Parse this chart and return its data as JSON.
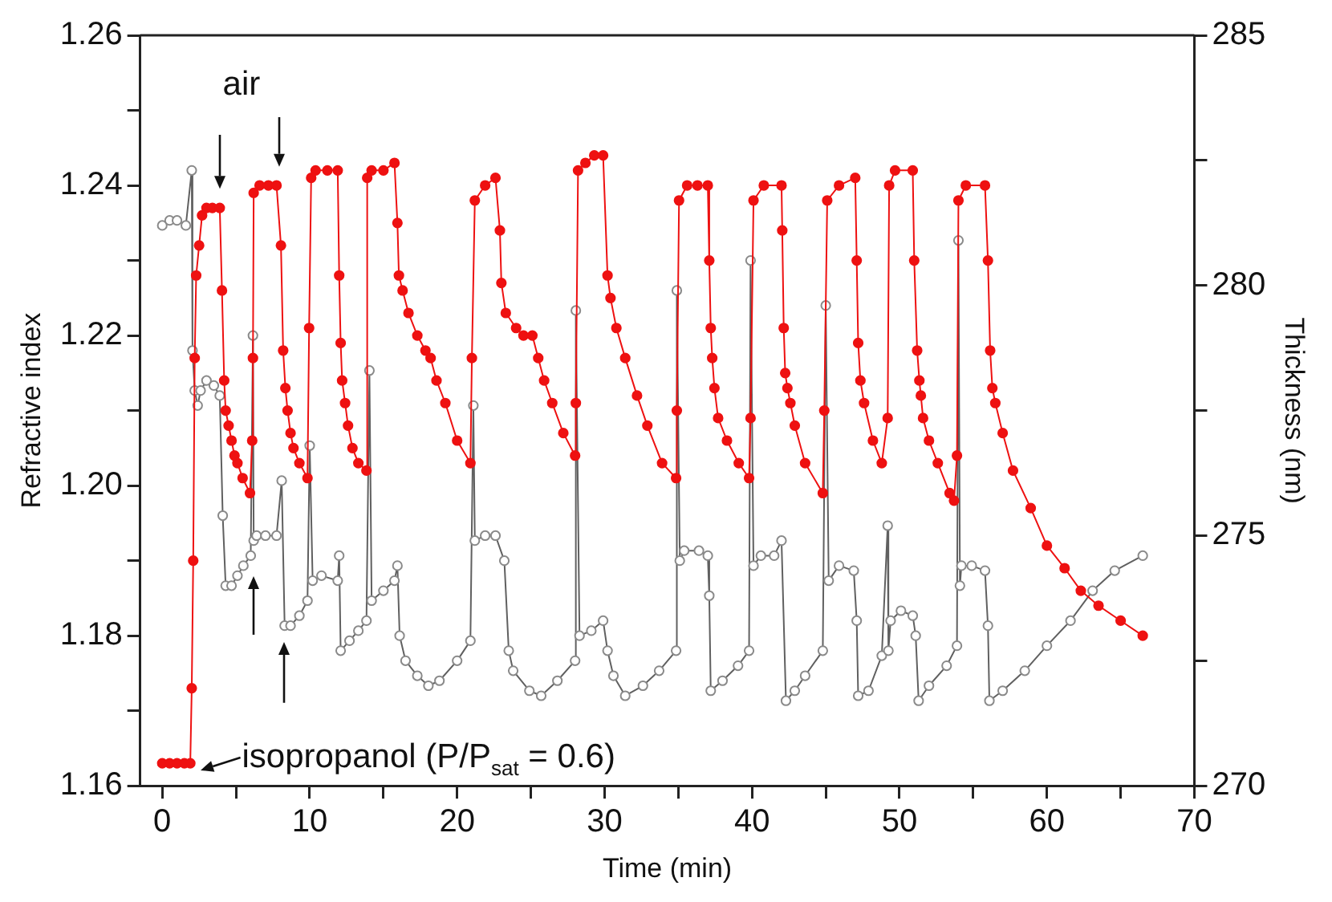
{
  "chart_data": {
    "type": "line",
    "xlabel": "Time (min)",
    "ylabel": "Refractive index",
    "y2label": "Thickness (nm)",
    "xlim": [
      -1.5,
      70
    ],
    "xticks": [
      0,
      {
        "value": 5,
        "label": null
      },
      10,
      {
        "value": 15,
        "label": null
      },
      20,
      {
        "value": 25,
        "label": null
      },
      30,
      {
        "value": 35,
        "label": null
      },
      40,
      {
        "value": 45,
        "label": null
      },
      50,
      {
        "value": 55,
        "label": null
      },
      60,
      {
        "value": 65,
        "label": null
      },
      70
    ],
    "ylim": [
      1.16,
      1.26
    ],
    "yticks": [
      1.16,
      {
        "value": 1.17,
        "label": null
      },
      1.18,
      {
        "value": 1.19,
        "label": null
      },
      {
        "value": 1.2,
        "label": "1.20"
      },
      {
        "value": 1.21,
        "label": null
      },
      1.22,
      {
        "value": 1.23,
        "label": null
      },
      1.24,
      {
        "value": 1.25,
        "label": null
      },
      1.26
    ],
    "y2lim": [
      270,
      285
    ],
    "y2ticks": [
      270,
      {
        "value": 272.5,
        "label": null
      },
      275,
      {
        "value": 277.5,
        "label": null
      },
      280,
      {
        "value": 282.5,
        "label": null
      },
      285
    ],
    "marker": "circle",
    "line_style": "solid",
    "annotations": [
      "air",
      "isopropanol (P/P$_{sat}$ = 0.6)"
    ],
    "series": [
      {
        "color": "#ee1111",
        "axis": "y",
        "x": [
          0,
          0.5,
          1,
          1.5,
          1.9,
          2.0,
          2.1,
          2.2,
          2.3,
          2.5,
          2.7,
          3.0,
          3.4,
          3.9,
          4.05,
          4.2,
          4.3,
          4.5,
          4.7,
          4.9,
          5.1,
          5.45,
          5.95,
          6.1,
          6.15,
          6.2,
          6.6,
          7.2,
          7.75,
          8.05,
          8.2,
          8.35,
          8.5,
          8.7,
          8.9,
          9.3,
          9.85,
          9.96,
          10.1,
          10.4,
          11.2,
          11.9,
          12.0,
          12.1,
          12.2,
          12.4,
          12.6,
          12.9,
          13.3,
          13.85,
          13.9,
          14.2,
          15.0,
          15.75,
          15.95,
          16.05,
          16.3,
          16.7,
          17.3,
          17.85,
          18.2,
          18.6,
          19.2,
          20.0,
          20.9,
          21.0,
          21.2,
          21.9,
          22.6,
          22.9,
          23.0,
          23.3,
          24.0,
          24.5,
          25.1,
          25.5,
          25.9,
          26.45,
          27.2,
          28.0,
          28.05,
          28.2,
          28.7,
          29.3,
          29.9,
          30.2,
          30.4,
          30.8,
          31.4,
          32.2,
          32.9,
          33.9,
          34.85,
          34.9,
          35.05,
          35.6,
          36.3,
          37.0,
          37.1,
          37.2,
          37.3,
          37.45,
          37.7,
          38.3,
          39.1,
          39.8,
          39.9,
          40.1,
          40.8,
          42.0,
          42.05,
          42.15,
          42.25,
          42.4,
          42.6,
          42.9,
          43.6,
          44.8,
          44.9,
          45.1,
          45.9,
          47.0,
          47.1,
          47.2,
          47.35,
          47.6,
          48.2,
          48.8,
          49.2,
          49.3,
          49.7,
          50.9,
          51.0,
          51.2,
          51.35,
          51.45,
          51.6,
          52.0,
          52.6,
          53.4,
          53.7,
          53.9,
          54.0,
          54.5,
          55.8,
          56.0,
          56.15,
          56.3,
          56.5,
          57.0,
          57.7,
          58.9,
          60.0,
          61.2,
          62.3,
          63.5,
          65.0,
          66.5
        ],
        "values": [
          1.163,
          1.163,
          1.163,
          1.163,
          1.163,
          1.173,
          1.19,
          1.217,
          1.228,
          1.232,
          1.236,
          1.237,
          1.237,
          1.237,
          1.226,
          1.214,
          1.21,
          1.208,
          1.206,
          1.204,
          1.203,
          1.201,
          1.199,
          1.206,
          1.217,
          1.239,
          1.24,
          1.24,
          1.24,
          1.232,
          1.218,
          1.213,
          1.21,
          1.207,
          1.205,
          1.203,
          1.201,
          1.221,
          1.241,
          1.242,
          1.242,
          1.242,
          1.228,
          1.219,
          1.214,
          1.211,
          1.208,
          1.205,
          1.203,
          1.202,
          1.241,
          1.242,
          1.242,
          1.243,
          1.235,
          1.228,
          1.226,
          1.223,
          1.22,
          1.218,
          1.217,
          1.214,
          1.211,
          1.206,
          1.203,
          1.217,
          1.238,
          1.24,
          1.241,
          1.234,
          1.227,
          1.223,
          1.221,
          1.22,
          1.22,
          1.217,
          1.214,
          1.211,
          1.207,
          1.204,
          1.211,
          1.242,
          1.243,
          1.244,
          1.244,
          1.228,
          1.225,
          1.221,
          1.217,
          1.212,
          1.208,
          1.203,
          1.201,
          1.21,
          1.238,
          1.24,
          1.24,
          1.24,
          1.23,
          1.221,
          1.217,
          1.213,
          1.209,
          1.206,
          1.203,
          1.201,
          1.209,
          1.238,
          1.24,
          1.24,
          1.234,
          1.221,
          1.215,
          1.213,
          1.211,
          1.208,
          1.203,
          1.199,
          1.21,
          1.238,
          1.24,
          1.241,
          1.23,
          1.219,
          1.214,
          1.211,
          1.206,
          1.203,
          1.209,
          1.24,
          1.242,
          1.242,
          1.23,
          1.218,
          1.214,
          1.212,
          1.209,
          1.206,
          1.203,
          1.199,
          1.198,
          1.204,
          1.238,
          1.24,
          1.24,
          1.23,
          1.218,
          1.213,
          1.211,
          1.207,
          1.202,
          1.197,
          1.192,
          1.189,
          1.186,
          1.184,
          1.182,
          1.18
        ]
      },
      {
        "color": "#606060",
        "axis": "y2",
        "x": [
          0,
          0.5,
          1.0,
          1.6,
          2.0,
          2.05,
          2.2,
          2.4,
          2.6,
          3.0,
          3.5,
          3.9,
          4.1,
          4.3,
          4.7,
          5.1,
          5.5,
          6.0,
          6.15,
          6.2,
          6.4,
          7.0,
          7.75,
          8.1,
          8.3,
          8.7,
          9.3,
          9.85,
          10.0,
          10.2,
          10.8,
          11.9,
          12.0,
          12.1,
          12.7,
          13.3,
          13.85,
          14.05,
          14.2,
          15.0,
          15.75,
          15.95,
          16.1,
          16.5,
          17.3,
          18.05,
          18.8,
          20.0,
          20.9,
          21.1,
          21.2,
          21.9,
          22.6,
          23.2,
          23.5,
          23.8,
          24.9,
          25.7,
          26.8,
          28.0,
          28.05,
          28.3,
          29.1,
          29.9,
          30.2,
          30.6,
          31.4,
          32.6,
          33.7,
          34.85,
          34.9,
          35.1,
          35.4,
          36.4,
          37.0,
          37.1,
          37.2,
          38.0,
          39.05,
          39.8,
          39.9,
          40.1,
          40.6,
          41.5,
          42.0,
          42.3,
          42.9,
          43.6,
          44.8,
          45.0,
          45.2,
          45.9,
          46.9,
          47.1,
          47.2,
          47.9,
          48.8,
          49.2,
          49.25,
          49.4,
          50.1,
          50.9,
          51.1,
          51.3,
          52.0,
          53.2,
          53.9,
          54.0,
          54.1,
          54.2,
          54.9,
          55.8,
          56.0,
          56.1,
          57.0,
          58.5,
          60.0,
          61.6,
          63.1,
          64.6,
          66.5
        ],
        "values": [
          281.2,
          281.3,
          281.3,
          281.2,
          282.3,
          278.7,
          277.9,
          277.6,
          277.9,
          278.1,
          278.0,
          277.8,
          275.4,
          274.0,
          274.0,
          274.2,
          274.4,
          274.6,
          279.0,
          274.9,
          275.0,
          275.0,
          275.0,
          276.1,
          273.2,
          273.2,
          273.4,
          273.7,
          276.8,
          274.1,
          274.2,
          274.1,
          274.6,
          272.7,
          272.9,
          273.1,
          273.3,
          278.3,
          273.7,
          273.9,
          274.1,
          274.4,
          273.0,
          272.5,
          272.2,
          272.0,
          272.1,
          272.5,
          272.9,
          277.6,
          274.9,
          275.0,
          275.0,
          274.5,
          272.7,
          272.3,
          271.9,
          271.8,
          272.1,
          272.5,
          279.5,
          273.0,
          273.1,
          273.3,
          272.7,
          272.2,
          271.8,
          272.0,
          272.3,
          272.7,
          279.9,
          274.5,
          274.7,
          274.7,
          274.6,
          273.8,
          271.9,
          272.1,
          272.4,
          272.7,
          280.5,
          274.4,
          274.6,
          274.6,
          274.9,
          271.7,
          271.9,
          272.2,
          272.7,
          279.6,
          274.1,
          274.4,
          274.3,
          273.3,
          271.8,
          271.9,
          272.6,
          275.2,
          272.7,
          273.3,
          273.5,
          273.4,
          273.0,
          271.7,
          272.0,
          272.4,
          272.8,
          280.9,
          274.0,
          274.4,
          274.4,
          274.3,
          273.2,
          271.7,
          271.9,
          272.3,
          272.8,
          273.3,
          273.9,
          274.3,
          274.6
        ]
      }
    ]
  }
}
